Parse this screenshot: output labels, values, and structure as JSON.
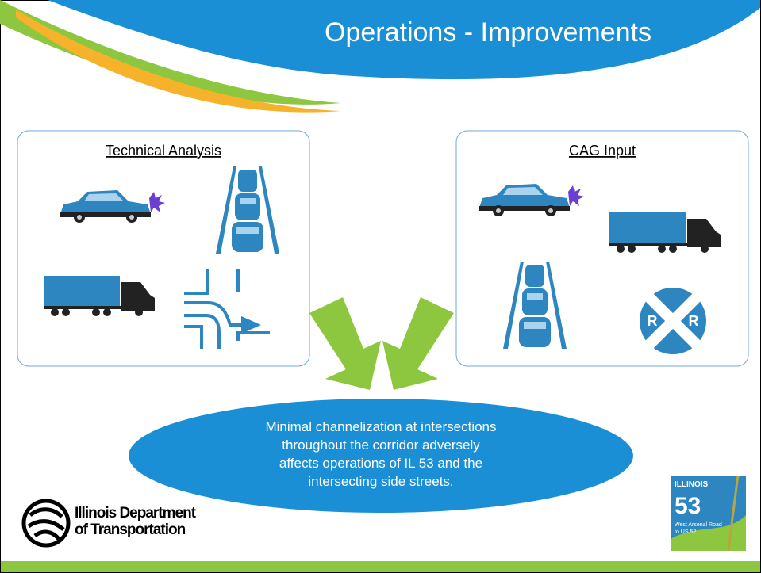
{
  "header": {
    "title": "Operations - Improvements"
  },
  "panels": [
    {
      "heading": "Technical Analysis"
    },
    {
      "heading": "CAG Input"
    }
  ],
  "conclusion": {
    "lines": [
      "Minimal channelization at intersections",
      "throughout the corridor adversely",
      "affects operations of IL 53 and the",
      "intersecting side streets."
    ]
  },
  "footer": {
    "logo_lines": [
      "Illinois Department",
      "of Transportation"
    ],
    "badge": {
      "state": "ILLINOIS",
      "route": "53",
      "lines": [
        "West Arsenal Road",
        "to US 52"
      ]
    }
  }
}
